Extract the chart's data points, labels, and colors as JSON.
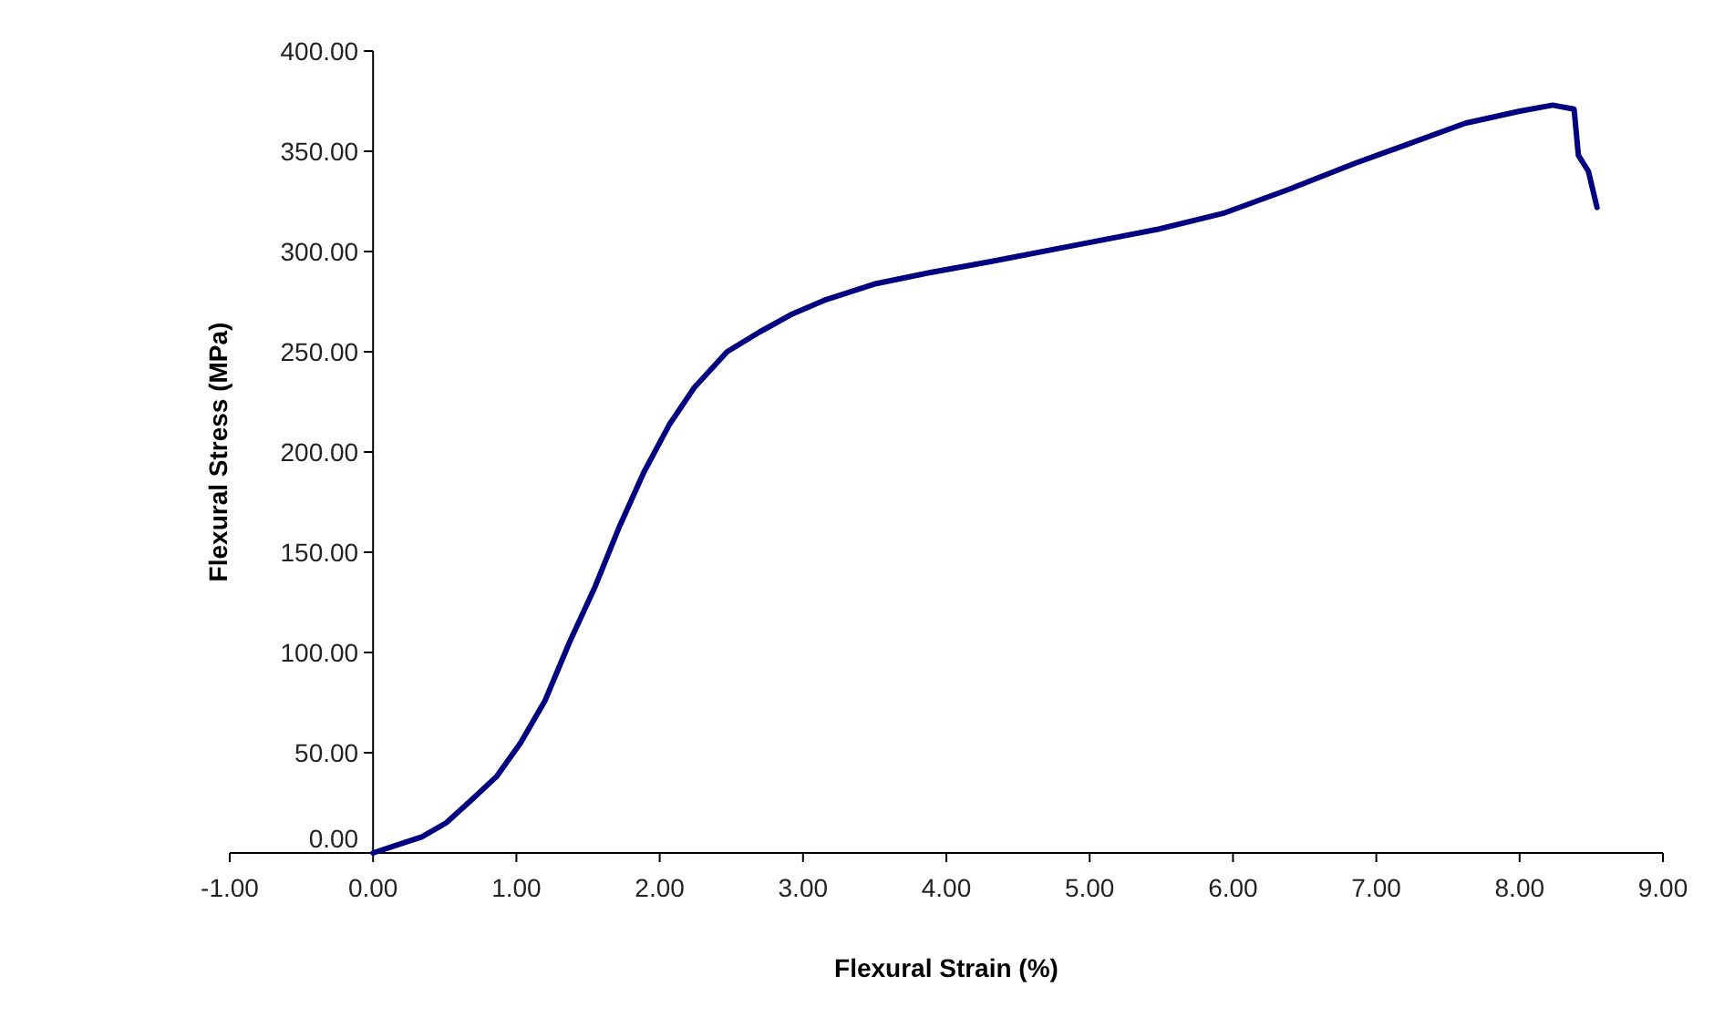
{
  "chart_data": {
    "type": "line",
    "xlabel": "Flexural Strain (%)",
    "ylabel": "Flexural Stress (MPa)",
    "xlim": [
      -1,
      9
    ],
    "xticks": [
      {
        "value": -1,
        "label": "-1.00"
      },
      {
        "value": 0,
        "label": "0.00"
      },
      {
        "value": 1,
        "label": "1.00"
      },
      {
        "value": 2,
        "label": "2.00"
      },
      {
        "value": 3,
        "label": "3.00"
      },
      {
        "value": 4,
        "label": "4.00"
      },
      {
        "value": 5,
        "label": "5.00"
      },
      {
        "value": 6,
        "label": "6.00"
      },
      {
        "value": 7,
        "label": "7.00"
      },
      {
        "value": 8,
        "label": "8.00"
      },
      {
        "value": 9,
        "label": "9.00"
      }
    ],
    "ylim": [
      0,
      400
    ],
    "yticks": [
      {
        "value": 0,
        "label": "0.00"
      },
      {
        "value": 50,
        "label": "50.00"
      },
      {
        "value": 100,
        "label": "100.00"
      },
      {
        "value": 150,
        "label": "150.00"
      },
      {
        "value": 200,
        "label": "200.00"
      },
      {
        "value": 250,
        "label": "250.00"
      },
      {
        "value": 300,
        "label": "300.00"
      },
      {
        "value": 350,
        "label": "350.00"
      },
      {
        "value": 400,
        "label": "400.00"
      }
    ],
    "grid": false,
    "marker": "none",
    "line_style": "solid",
    "series": [
      {
        "color": "#000080",
        "x": [
          0,
          0.17,
          0.34,
          0.51,
          0.68,
          0.86,
          1.03,
          1.2,
          1.37,
          1.55,
          1.72,
          1.89,
          2.07,
          2.24,
          2.47,
          2.7,
          2.93,
          3.16,
          3.51,
          3.85,
          4.31,
          4.89,
          5.47,
          5.93,
          6.39,
          6.85,
          7.2,
          7.62,
          8.0,
          8.23,
          8.38,
          8.41,
          8.48,
          8.54
        ],
        "values": [
          0,
          4,
          8,
          15,
          26,
          38,
          55,
          76,
          105,
          133,
          163,
          190,
          214,
          232,
          250,
          260,
          269,
          276,
          284,
          289,
          295,
          303,
          311,
          319,
          331,
          344,
          353,
          364,
          370,
          373,
          371,
          348,
          340,
          322
        ]
      }
    ]
  }
}
